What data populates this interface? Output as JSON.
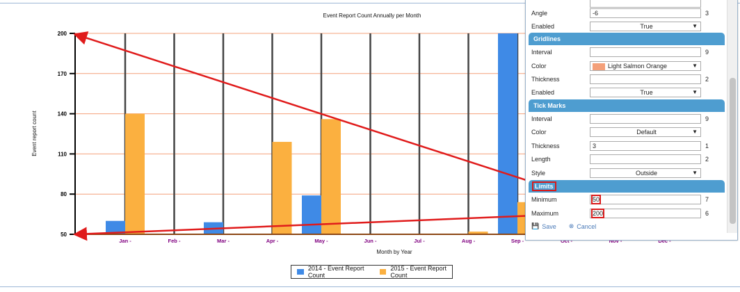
{
  "chart_data": {
    "type": "bar",
    "title": "Event Report Count Annually per Month",
    "xlabel": "Month by Year",
    "ylabel": "Event report count",
    "ylim": [
      50,
      200
    ],
    "yticks": [
      50,
      80,
      110,
      140,
      170,
      200
    ],
    "categories": [
      "Jan -",
      "Feb -",
      "Mar -",
      "Apr -",
      "May -",
      "Jun -",
      "Jul -",
      "Aug -",
      "Sep -",
      "Oct -",
      "Nov -",
      "Dec -"
    ],
    "series": [
      {
        "name": "2014 - Event Report Count",
        "color": "#3f8ae6",
        "values": [
          60,
          50,
          59,
          50,
          79,
          50,
          50,
          50,
          200,
          50,
          50,
          50
        ]
      },
      {
        "name": "2015 - Event Report Count",
        "color": "#fbb040",
        "values": [
          140,
          50,
          50,
          119,
          136,
          50,
          50,
          52,
          74,
          50,
          50,
          50
        ]
      }
    ],
    "gridlines": true,
    "gridline_color": "#f4a07a",
    "legend_position": "bottom"
  },
  "legend": {
    "items": [
      "2014 - Event Report Count",
      "2015 - Event Report Count"
    ]
  },
  "panel": {
    "rows_top": [
      {
        "label": "Angle",
        "value": "-6",
        "num": "3"
      },
      {
        "label": "Enabled",
        "value": "True",
        "num": ""
      }
    ],
    "gridlines": {
      "title": "Gridlines",
      "interval_label": "Interval",
      "interval_value": "",
      "interval_num": "9",
      "color_label": "Color",
      "color_value": "Light Salmon Orange",
      "thickness_label": "Thickness",
      "thickness_value": "",
      "thickness_num": "2",
      "enabled_label": "Enabled",
      "enabled_value": "True"
    },
    "tickmarks": {
      "title": "Tick Marks",
      "interval_label": "Interval",
      "interval_value": "",
      "interval_num": "9",
      "color_label": "Color",
      "color_value": "Default",
      "thickness_label": "Thickness",
      "thickness_value": "3",
      "thickness_num": "1",
      "length_label": "Length",
      "length_value": "",
      "length_num": "2",
      "style_label": "Style",
      "style_value": "Outside"
    },
    "limits": {
      "title": "Limits",
      "minimum_label": "Minimum",
      "minimum_value": "50",
      "minimum_num": "7",
      "maximum_label": "Maximum",
      "maximum_value": "200",
      "maximum_num": "6"
    },
    "save_label": "Save",
    "cancel_label": "Cancel"
  },
  "colors": {
    "annotation": "#e01b1b",
    "accent": "#4e9dd0"
  }
}
